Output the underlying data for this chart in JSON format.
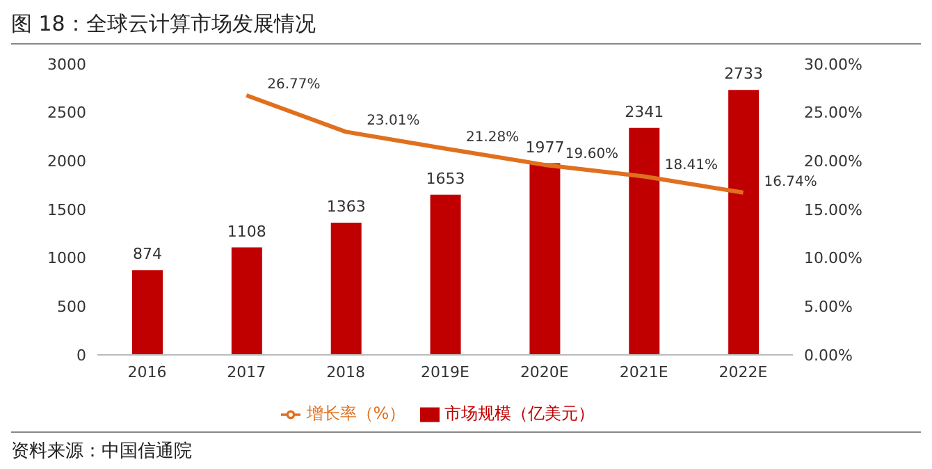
{
  "chart_data": {
    "type": "bar",
    "title": "图 18：全球云计算市场发展情况",
    "categories": [
      "2016",
      "2017",
      "2018",
      "2019E",
      "2020E",
      "2021E",
      "2022E"
    ],
    "series": [
      {
        "name": "市场规模（亿美元）",
        "color": "#c00000",
        "values": [
          874,
          1108,
          1363,
          1653,
          1977,
          2341,
          2733
        ],
        "value_labels": [
          "874",
          "1108",
          "1363",
          "1653",
          "1977",
          "2341",
          "2733"
        ]
      },
      {
        "name": "增长率（%）",
        "type": "line",
        "axis": "y2",
        "color": "#e0701e",
        "values": [
          null,
          26.77,
          23.01,
          21.28,
          19.6,
          18.41,
          16.74
        ],
        "value_labels": [
          null,
          "26.77%",
          "23.01%",
          "21.28%",
          "19.60%",
          "18.41%",
          "16.74%"
        ]
      }
    ],
    "ylim": [
      0,
      3000
    ],
    "yticks": [
      0,
      500,
      1000,
      1500,
      2000,
      2500,
      3000
    ],
    "y2lim": [
      0,
      30
    ],
    "y2ticks": [
      {
        "value": 0,
        "label": "0.00%"
      },
      {
        "value": 5,
        "label": "5.00%"
      },
      {
        "value": 10,
        "label": "10.00%"
      },
      {
        "value": 15,
        "label": "15.00%"
      },
      {
        "value": 20,
        "label": "20.00%"
      },
      {
        "value": 25,
        "label": "25.00%"
      },
      {
        "value": 30,
        "label": "30.00%"
      }
    ],
    "grid": false,
    "legend": "bottom",
    "marker": "none",
    "line_style": "solid",
    "annotations": [
      "资料来源：中国信通院"
    ]
  }
}
